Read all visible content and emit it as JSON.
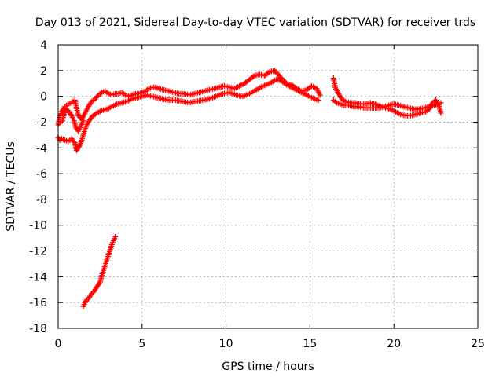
{
  "chart_data": {
    "type": "scatter",
    "title": "Day 013 of 2021, Sidereal Day-to-day VTEC variation (SDTVAR) for receiver trds",
    "xlabel": "GPS time / hours",
    "ylabel": "SDTVAR / TECUs",
    "xlim": [
      0,
      25
    ],
    "ylim": [
      -18,
      4
    ],
    "xticks": [
      0,
      5,
      10,
      15,
      20,
      25
    ],
    "yticks": [
      -18,
      -16,
      -14,
      -12,
      -10,
      -8,
      -6,
      -4,
      -2,
      0,
      2,
      4
    ],
    "xtick_labels": [
      "0",
      "5",
      "10",
      "15",
      "20",
      "25"
    ],
    "ytick_labels": [
      "-18",
      "-16",
      "-14",
      "-12",
      "-10",
      "-8",
      "-6",
      "-4",
      "-2",
      "0",
      "2",
      "4"
    ],
    "grid": true,
    "marker": "+",
    "series": [
      {
        "name": "SDTVAR",
        "color": "#ff0000",
        "segments": [
          {
            "name": "early-upper-band",
            "x": [
              0.0,
              0.1,
              0.2,
              0.3,
              0.4,
              0.6,
              0.8,
              1.0,
              1.2,
              1.4,
              1.6,
              1.8,
              2.0,
              2.2,
              2.4,
              2.6,
              2.8,
              3.0,
              3.2,
              3.4,
              3.6,
              3.8,
              4.0,
              4.2,
              4.4,
              4.6,
              4.8,
              5.0,
              5.2,
              5.4,
              5.6,
              5.8,
              6.0,
              6.3,
              6.6,
              6.9,
              7.2,
              7.5,
              7.8,
              8.1,
              8.4,
              8.7,
              9.0,
              9.3,
              9.6,
              9.9,
              10.2,
              10.5,
              10.8,
              11.1,
              11.4,
              11.7,
              12.0,
              12.3,
              12.6,
              12.9,
              13.1,
              13.3,
              13.6,
              13.9,
              14.2,
              14.5,
              14.8,
              15.1,
              15.4,
              15.6
            ],
            "y": [
              -2.2,
              -1.5,
              -1.2,
              -1.0,
              -0.8,
              -0.6,
              -0.5,
              -0.3,
              -1.5,
              -1.8,
              -1.3,
              -0.8,
              -0.4,
              -0.2,
              0.1,
              0.3,
              0.4,
              0.2,
              0.1,
              0.2,
              0.2,
              0.3,
              0.1,
              0.0,
              0.1,
              0.2,
              0.2,
              0.3,
              0.4,
              0.6,
              0.7,
              0.7,
              0.6,
              0.5,
              0.4,
              0.3,
              0.2,
              0.2,
              0.1,
              0.2,
              0.3,
              0.4,
              0.5,
              0.6,
              0.7,
              0.8,
              0.7,
              0.6,
              0.8,
              1.0,
              1.3,
              1.6,
              1.7,
              1.6,
              1.9,
              2.0,
              1.7,
              1.4,
              1.0,
              0.9,
              0.6,
              0.4,
              0.5,
              0.8,
              0.6,
              0.1
            ]
          },
          {
            "name": "early-lower-band",
            "x": [
              0.0,
              0.1,
              0.2,
              0.4,
              0.6,
              0.8,
              1.0,
              1.1,
              1.3,
              1.5,
              1.7,
              2.0,
              2.3,
              2.6,
              2.9,
              3.2,
              3.5,
              3.8,
              4.1,
              4.4,
              4.7,
              5.0,
              5.3,
              5.6,
              5.9,
              6.2,
              6.6,
              7.0,
              7.4,
              7.8,
              8.2,
              8.6,
              9.0,
              9.4,
              9.8,
              10.2,
              10.6,
              11.0,
              11.4,
              11.8,
              12.2,
              12.6,
              13.0,
              13.3,
              13.6,
              13.9,
              14.2,
              14.5,
              14.8,
              15.1,
              15.5
            ],
            "y": [
              -3.2,
              -3.4,
              -3.3,
              -3.4,
              -3.5,
              -3.3,
              -3.6,
              -4.2,
              -3.8,
              -3.0,
              -2.2,
              -1.6,
              -1.3,
              -1.1,
              -1.0,
              -0.8,
              -0.6,
              -0.5,
              -0.4,
              -0.2,
              -0.1,
              0.0,
              0.1,
              0.0,
              -0.1,
              -0.2,
              -0.3,
              -0.3,
              -0.4,
              -0.5,
              -0.4,
              -0.3,
              -0.2,
              0.0,
              0.2,
              0.3,
              0.1,
              0.0,
              0.2,
              0.5,
              0.8,
              1.0,
              1.3,
              1.2,
              0.9,
              0.7,
              0.5,
              0.3,
              0.1,
              -0.1,
              -0.3
            ]
          },
          {
            "name": "early-dip-loop",
            "x": [
              0.05,
              0.15,
              0.25,
              0.35,
              0.5,
              0.65,
              0.8,
              0.95,
              1.05,
              1.2,
              1.35,
              1.5
            ],
            "y": [
              -2.1,
              -2.0,
              -1.9,
              -1.4,
              -1.0,
              -1.2,
              -1.5,
              -1.9,
              -2.4,
              -2.7,
              -2.3,
              -1.9
            ]
          },
          {
            "name": "steep-segment",
            "x": [
              1.5,
              1.6,
              1.7,
              1.8,
              1.9,
              2.0,
              2.1,
              2.2,
              2.3,
              2.4,
              2.5,
              2.6,
              2.7,
              2.8,
              2.9,
              3.0,
              3.1,
              3.2,
              3.3,
              3.4
            ],
            "y": [
              -16.3,
              -16.0,
              -15.8,
              -15.7,
              -15.5,
              -15.3,
              -15.2,
              -15.0,
              -14.8,
              -14.6,
              -14.4,
              -13.9,
              -13.5,
              -13.1,
              -12.7,
              -12.3,
              -11.9,
              -11.5,
              -11.2,
              -10.9
            ]
          },
          {
            "name": "late-band-a",
            "x": [
              16.4,
              16.5,
              16.7,
              16.9,
              17.1,
              17.4,
              17.7,
              18.0,
              18.3,
              18.6,
              18.9,
              19.2,
              19.5,
              19.8,
              20.1,
              20.4,
              20.7,
              21.0,
              21.3,
              21.6,
              21.9,
              22.1,
              22.3,
              22.5,
              22.7,
              22.8
            ],
            "y": [
              1.4,
              0.7,
              0.2,
              -0.2,
              -0.4,
              -0.5,
              -0.5,
              -0.6,
              -0.6,
              -0.5,
              -0.6,
              -0.8,
              -0.9,
              -1.0,
              -1.2,
              -1.4,
              -1.5,
              -1.5,
              -1.4,
              -1.3,
              -1.2,
              -1.0,
              -0.5,
              -0.3,
              -0.8,
              -1.3
            ]
          },
          {
            "name": "late-band-b",
            "x": [
              16.4,
              16.6,
              16.8,
              17.0,
              17.3,
              17.6,
              17.9,
              18.2,
              18.5,
              18.8,
              19.1,
              19.4,
              19.7,
              20.0,
              20.3,
              20.6,
              20.9,
              21.2,
              21.5,
              21.8,
              22.1,
              22.4,
              22.6,
              22.8
            ],
            "y": [
              -0.3,
              -0.5,
              -0.6,
              -0.7,
              -0.7,
              -0.8,
              -0.8,
              -0.9,
              -0.9,
              -0.9,
              -0.9,
              -0.8,
              -0.7,
              -0.6,
              -0.7,
              -0.8,
              -0.9,
              -1.0,
              -1.0,
              -0.9,
              -0.8,
              -0.7,
              -0.6,
              -0.5
            ]
          }
        ]
      }
    ]
  }
}
